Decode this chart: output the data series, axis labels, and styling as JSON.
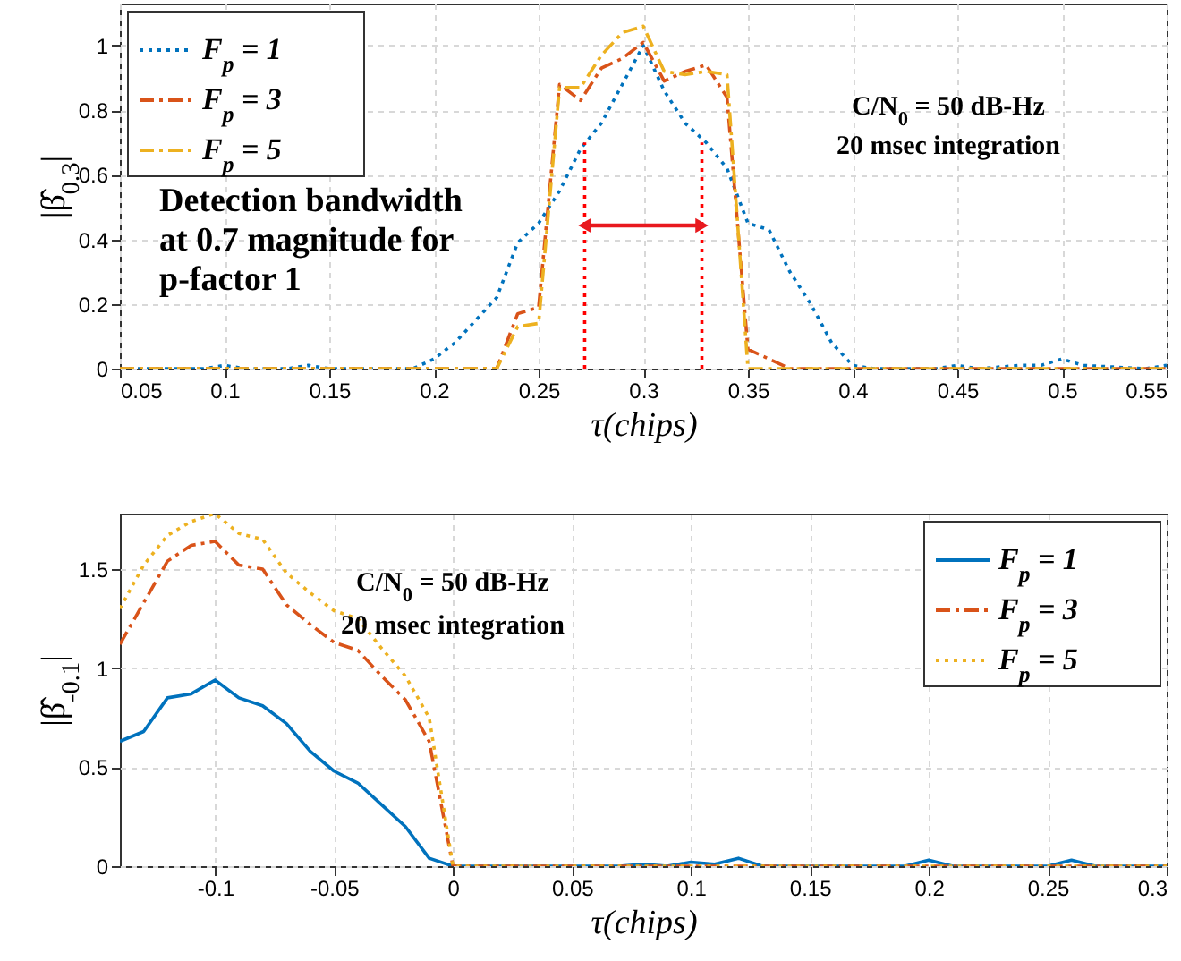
{
  "chart_data": [
    {
      "type": "line",
      "xlabel": "τ(chips)",
      "ylabel": "|β̂$_{0.3}$|",
      "xlim": [
        0.05,
        0.55
      ],
      "ylim": [
        0,
        1.13
      ],
      "xticks": [
        0.05,
        0.1,
        0.15,
        0.2,
        0.25,
        0.3,
        0.35,
        0.4,
        0.45,
        0.5,
        0.55
      ],
      "yticks": [
        0,
        0.2,
        0.4,
        0.6,
        0.8,
        1
      ],
      "grid": true,
      "legend": "top left",
      "annotations": [
        "C/N$_{0}$ = 50 dB-Hz",
        "20 msec integration",
        "Detection bandwidth at 0.7 magnitude for p-factor 1"
      ],
      "series": [
        {
          "name": "F$_{p}$ = 1",
          "color": "#0072bd",
          "line_style": "dotted",
          "x": [
            0.05,
            0.09,
            0.1,
            0.11,
            0.13,
            0.14,
            0.15,
            0.19,
            0.2,
            0.21,
            0.22,
            0.23,
            0.24,
            0.25,
            0.26,
            0.27,
            0.28,
            0.29,
            0.3,
            0.31,
            0.32,
            0.33,
            0.34,
            0.35,
            0.36,
            0.37,
            0.38,
            0.39,
            0.4,
            0.41,
            0.44,
            0.45,
            0.46,
            0.48,
            0.49,
            0.5,
            0.51,
            0.54,
            0.55
          ],
          "values": [
            0,
            0,
            0.01,
            0,
            0,
            0.01,
            0,
            0,
            0.03,
            0.08,
            0.15,
            0.22,
            0.39,
            0.45,
            0.55,
            0.68,
            0.76,
            0.88,
            1.0,
            0.86,
            0.76,
            0.7,
            0.62,
            0.45,
            0.43,
            0.3,
            0.2,
            0.08,
            0.01,
            0,
            0,
            0.01,
            0,
            0.01,
            0.01,
            0.03,
            0.01,
            0,
            0.01
          ]
        },
        {
          "name": "F$_{p}$ = 3",
          "color": "#d95319",
          "line_style": "dashed",
          "x": [
            0.05,
            0.23,
            0.24,
            0.25,
            0.26,
            0.27,
            0.28,
            0.29,
            0.3,
            0.31,
            0.32,
            0.33,
            0.34,
            0.35,
            0.36,
            0.37,
            0.55
          ],
          "values": [
            0,
            0,
            0.17,
            0.19,
            0.88,
            0.83,
            0.93,
            0.96,
            1.01,
            0.89,
            0.92,
            0.94,
            0.84,
            0.06,
            0.03,
            0,
            0
          ]
        },
        {
          "name": "F$_{p}$ = 5",
          "color": "#edb120",
          "line_style": "dashed",
          "x": [
            0.05,
            0.23,
            0.24,
            0.25,
            0.26,
            0.27,
            0.28,
            0.29,
            0.3,
            0.31,
            0.32,
            0.33,
            0.34,
            0.35,
            0.55
          ],
          "values": [
            0,
            0,
            0.13,
            0.14,
            0.87,
            0.87,
            0.97,
            1.04,
            1.06,
            0.92,
            0.91,
            0.92,
            0.91,
            0,
            0
          ]
        },
        {
          "color": "#ff0000",
          "line_style": "dotted",
          "x": [
            0.272,
            0.272
          ],
          "values": [
            0,
            0.7
          ]
        },
        {
          "color": "#ff0000",
          "line_style": "dotted",
          "x": [
            0.328,
            0.328
          ],
          "values": [
            0,
            0.7
          ]
        }
      ]
    },
    {
      "type": "line",
      "xlabel": "τ(chips)",
      "ylabel": "|β̂$_{-0.1}$|",
      "xlim": [
        -0.14,
        0.3
      ],
      "ylim": [
        0,
        1.78
      ],
      "xticks": [
        -0.1,
        -0.05,
        0,
        0.05,
        0.1,
        0.15,
        0.2,
        0.25,
        0.3
      ],
      "yticks": [
        0,
        0.5,
        1,
        1.5
      ],
      "grid": true,
      "legend": "top right",
      "annotations": [
        "C/N$_{0}$ = 50 dB-Hz",
        "20 msec integration"
      ],
      "series": [
        {
          "name": "F$_{p}$ = 1",
          "color": "#0072bd",
          "line_style": "solid",
          "x": [
            -0.14,
            -0.13,
            -0.12,
            -0.11,
            -0.1,
            -0.09,
            -0.08,
            -0.07,
            -0.06,
            -0.05,
            -0.04,
            -0.03,
            -0.02,
            -0.01,
            0,
            0.07,
            0.08,
            0.09,
            0.1,
            0.11,
            0.12,
            0.13,
            0.19,
            0.2,
            0.21,
            0.25,
            0.26,
            0.27,
            0.3
          ],
          "values": [
            0.63,
            0.68,
            0.85,
            0.87,
            0.94,
            0.85,
            0.81,
            0.72,
            0.58,
            0.48,
            0.42,
            0.31,
            0.2,
            0.04,
            0,
            0,
            0.01,
            0,
            0.02,
            0.01,
            0.04,
            0,
            0,
            0.03,
            0,
            0,
            0.03,
            0,
            0
          ]
        },
        {
          "name": "F$_{p}$ = 3",
          "color": "#d95319",
          "line_style": "dashed",
          "x": [
            -0.14,
            -0.13,
            -0.12,
            -0.11,
            -0.1,
            -0.09,
            -0.08,
            -0.07,
            -0.06,
            -0.05,
            -0.04,
            -0.03,
            -0.02,
            -0.01,
            0,
            0.3
          ],
          "values": [
            1.12,
            1.33,
            1.54,
            1.62,
            1.64,
            1.52,
            1.5,
            1.32,
            1.22,
            1.13,
            1.09,
            0.96,
            0.84,
            0.63,
            0,
            0
          ]
        },
        {
          "name": "F$_{p}$ = 5",
          "color": "#edb120",
          "line_style": "dotted",
          "x": [
            -0.14,
            -0.13,
            -0.12,
            -0.11,
            -0.1,
            -0.09,
            -0.08,
            -0.07,
            -0.06,
            -0.05,
            -0.04,
            -0.03,
            -0.02,
            -0.01,
            0,
            0.3
          ],
          "values": [
            1.3,
            1.52,
            1.67,
            1.74,
            1.78,
            1.68,
            1.65,
            1.48,
            1.38,
            1.29,
            1.25,
            1.1,
            0.96,
            0.75,
            0,
            0
          ]
        }
      ]
    }
  ]
}
